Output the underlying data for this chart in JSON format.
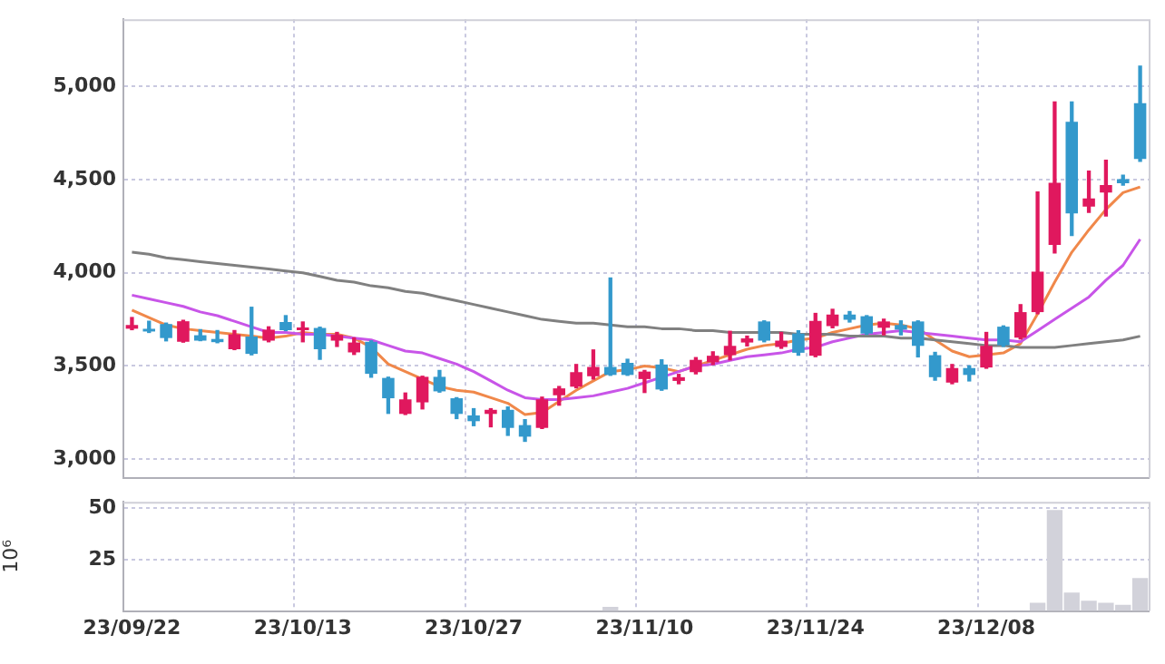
{
  "chart_data": [
    {
      "type": "candlestick",
      "categories": [
        null,
        null,
        null,
        null,
        null,
        null,
        null,
        null,
        null,
        null,
        null,
        null,
        null,
        null,
        null,
        null,
        null,
        null,
        null,
        null,
        null,
        null,
        null,
        null,
        null,
        null,
        null,
        null,
        null,
        null,
        null,
        null,
        null,
        null,
        null,
        null,
        null,
        null,
        null,
        null,
        null,
        null,
        null,
        null,
        null,
        null,
        null,
        null,
        null,
        null,
        null,
        null,
        null,
        null,
        null,
        null,
        null,
        null,
        null,
        null
      ],
      "ohlc": [
        [
          3700,
          3760,
          3695,
          3720
        ],
        [
          3690,
          3740,
          3680,
          3685
        ],
        [
          3725,
          3730,
          3635,
          3650
        ],
        [
          3630,
          3745,
          3628,
          3740
        ],
        [
          3665,
          3695,
          3636,
          3636
        ],
        [
          3645,
          3690,
          3625,
          3628
        ],
        [
          3590,
          3690,
          3588,
          3670
        ],
        [
          3658,
          3815,
          3560,
          3565
        ],
        [
          3636,
          3710,
          3630,
          3695
        ],
        [
          3736,
          3770,
          3690,
          3692
        ],
        [
          3692,
          3736,
          3630,
          3705
        ],
        [
          3704,
          3708,
          3536,
          3590
        ],
        [
          3636,
          3680,
          3605,
          3667
        ],
        [
          3573,
          3650,
          3562,
          3626
        ],
        [
          3630,
          3635,
          3440,
          3458
        ],
        [
          3436,
          3440,
          3246,
          3327
        ],
        [
          3243,
          3355,
          3240,
          3321
        ],
        [
          3305,
          3445,
          3270,
          3442
        ],
        [
          3442,
          3476,
          3360,
          3364
        ],
        [
          3327,
          3330,
          3218,
          3243
        ],
        [
          3235,
          3271,
          3180,
          3204
        ],
        [
          3243,
          3271,
          3174,
          3265
        ],
        [
          3265,
          3280,
          3128,
          3168
        ],
        [
          3183,
          3212,
          3096,
          3121
        ],
        [
          3168,
          3333,
          3165,
          3321
        ],
        [
          3343,
          3390,
          3290,
          3380
        ],
        [
          3389,
          3508,
          3383,
          3467
        ],
        [
          3445,
          3586,
          3430,
          3495
        ],
        [
          3495,
          3972,
          3450,
          3452
        ],
        [
          3517,
          3536,
          3450,
          3452
        ],
        [
          3430,
          3476,
          3358,
          3470
        ],
        [
          3508,
          3533,
          3370,
          3374
        ],
        [
          3420,
          3455,
          3405,
          3440
        ],
        [
          3467,
          3545,
          3458,
          3533
        ],
        [
          3520,
          3576,
          3508,
          3555
        ],
        [
          3558,
          3686,
          3533,
          3608
        ],
        [
          3626,
          3660,
          3608,
          3648
        ],
        [
          3739,
          3742,
          3630,
          3636
        ],
        [
          3602,
          3680,
          3595,
          3636
        ],
        [
          3674,
          3689,
          3558,
          3571
        ],
        [
          3555,
          3782,
          3550,
          3742
        ],
        [
          3714,
          3804,
          3705,
          3776
        ],
        [
          3776,
          3792,
          3736,
          3748
        ],
        [
          3767,
          3770,
          3670,
          3674
        ],
        [
          3705,
          3751,
          3667,
          3739
        ],
        [
          3720,
          3742,
          3667,
          3695
        ],
        [
          3739,
          3742,
          3549,
          3608
        ],
        [
          3558,
          3573,
          3424,
          3440
        ],
        [
          3411,
          3508,
          3405,
          3489
        ],
        [
          3489,
          3501,
          3420,
          3452
        ],
        [
          3492,
          3680,
          3488,
          3608
        ],
        [
          3711,
          3715,
          3605,
          3611
        ],
        [
          3652,
          3829,
          3645,
          3789
        ],
        [
          3789,
          4433,
          3780,
          4006
        ],
        [
          4150,
          4916,
          4106,
          4483
        ],
        [
          4810,
          4916,
          4200,
          4318
        ],
        [
          4355,
          4545,
          4324,
          4399
        ],
        [
          4430,
          4604,
          4305,
          4470
        ],
        [
          4502,
          4523,
          4470,
          4480
        ],
        [
          4910,
          5109,
          4598,
          4611
        ]
      ],
      "colors": [
        "#e0185e",
        "#3399cc",
        "#3399cc",
        "#e0185e",
        "#3399cc",
        "#3399cc",
        "#e0185e",
        "#3399cc",
        "#e0185e",
        "#3399cc",
        "#e0185e",
        "#3399cc",
        "#e0185e",
        "#e0185e",
        "#3399cc",
        "#3399cc",
        "#e0185e",
        "#e0185e",
        "#3399cc",
        "#3399cc",
        "#3399cc",
        "#e0185e",
        "#3399cc",
        "#3399cc",
        "#e0185e",
        "#e0185e",
        "#e0185e",
        "#e0185e",
        "#3399cc",
        "#3399cc",
        "#e0185e",
        "#3399cc",
        "#e0185e",
        "#e0185e",
        "#e0185e",
        "#e0185e",
        "#e0185e",
        "#3399cc",
        "#e0185e",
        "#3399cc",
        "#e0185e",
        "#e0185e",
        "#3399cc",
        "#3399cc",
        "#e0185e",
        "#3399cc",
        "#3399cc",
        "#3399cc",
        "#e0185e",
        "#3399cc",
        "#e0185e",
        "#3399cc",
        "#e0185e",
        "#e0185e",
        "#e0185e",
        "#3399cc",
        "#e0185e",
        "#e0185e",
        "#3399cc",
        "#3399cc"
      ],
      "series": [
        {
          "type": "line",
          "color": "#808080",
          "values": [
            4110,
            4100,
            4080,
            4070,
            4060,
            4050,
            4040,
            4030,
            4020,
            4010,
            4000,
            3980,
            3960,
            3950,
            3930,
            3920,
            3900,
            3890,
            3870,
            3850,
            3830,
            3810,
            3790,
            3770,
            3750,
            3740,
            3730,
            3730,
            3720,
            3710,
            3710,
            3700,
            3700,
            3690,
            3690,
            3680,
            3680,
            3680,
            3680,
            3670,
            3670,
            3670,
            3660,
            3660,
            3660,
            3650,
            3650,
            3640,
            3630,
            3620,
            3610,
            3610,
            3600,
            3600,
            3600,
            3610,
            3620,
            3630,
            3640,
            3660
          ]
        },
        {
          "type": "line",
          "color": "#c855e8",
          "values": [
            3880,
            3860,
            3840,
            3820,
            3790,
            3770,
            3740,
            3710,
            3680,
            3680,
            3670,
            3670,
            3660,
            3650,
            3640,
            3610,
            3580,
            3570,
            3540,
            3510,
            3470,
            3420,
            3370,
            3330,
            3320,
            3320,
            3330,
            3340,
            3360,
            3380,
            3410,
            3440,
            3470,
            3500,
            3510,
            3530,
            3550,
            3560,
            3570,
            3590,
            3600,
            3630,
            3650,
            3670,
            3680,
            3690,
            3680,
            3670,
            3660,
            3650,
            3640,
            3640,
            3630,
            3690,
            3750,
            3810,
            3870,
            3960,
            4040,
            4180
          ]
        },
        {
          "type": "line",
          "color": "#f0884a",
          "values": [
            3800,
            3760,
            3720,
            3700,
            3690,
            3680,
            3670,
            3660,
            3650,
            3660,
            3680,
            3670,
            3670,
            3650,
            3600,
            3510,
            3470,
            3430,
            3390,
            3370,
            3360,
            3330,
            3300,
            3240,
            3250,
            3310,
            3370,
            3420,
            3470,
            3480,
            3500,
            3490,
            3470,
            3500,
            3530,
            3560,
            3590,
            3610,
            3620,
            3640,
            3650,
            3680,
            3700,
            3720,
            3730,
            3720,
            3700,
            3640,
            3580,
            3550,
            3560,
            3570,
            3620,
            3780,
            3950,
            4110,
            4230,
            4340,
            4430,
            4460
          ]
        }
      ],
      "ylim": [
        2900,
        5360
      ],
      "yticks": [
        {
          "value": 3000,
          "label": "3,000"
        },
        {
          "value": 3500,
          "label": "3,500"
        },
        {
          "value": 4000,
          "label": "4,000"
        },
        {
          "value": 4500,
          "label": "4,500"
        },
        {
          "value": 5000,
          "label": "5,000"
        }
      ],
      "grid": true,
      "tick_labels": "y"
    },
    {
      "type": "bar",
      "categories": [
        "23/09/22",
        null,
        null,
        null,
        null,
        null,
        null,
        null,
        null,
        null,
        "23/10/13",
        null,
        null,
        null,
        null,
        null,
        null,
        null,
        null,
        null,
        "23/10/27",
        null,
        null,
        null,
        null,
        null,
        null,
        null,
        null,
        null,
        "23/11/10",
        null,
        null,
        null,
        null,
        null,
        null,
        null,
        null,
        null,
        "23/11/24",
        null,
        null,
        null,
        null,
        null,
        null,
        null,
        null,
        null,
        "23/12/08",
        null,
        null,
        null,
        null,
        null,
        null,
        null,
        null,
        null
      ],
      "values": [
        0,
        0,
        0,
        0,
        0,
        0,
        0,
        0,
        0,
        0,
        0,
        0,
        0,
        0,
        0,
        0,
        0,
        0,
        0,
        0,
        0,
        0,
        0,
        0,
        0,
        0,
        0,
        0,
        2,
        0,
        0,
        0,
        0,
        0,
        0,
        0,
        0,
        0,
        0,
        0,
        0,
        0,
        0,
        0,
        0,
        0,
        0,
        0,
        0,
        0,
        0,
        0,
        0,
        4,
        49,
        9,
        5,
        4,
        3,
        16
      ],
      "color": "#d2d2da",
      "ylabel": "10⁶",
      "ylim": [
        0,
        53
      ],
      "yticks": [
        25,
        50
      ],
      "grid": true
    }
  ]
}
